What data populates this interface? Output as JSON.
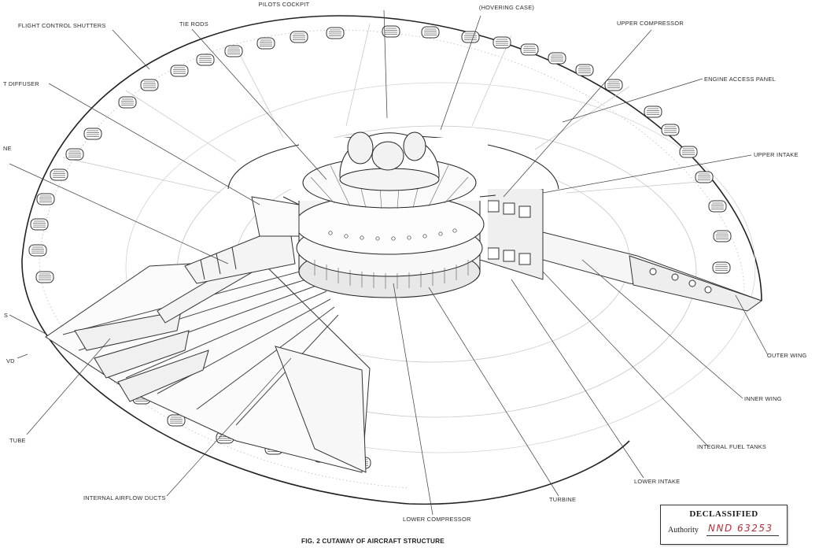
{
  "labels": {
    "pilots_cockpit": "PILOTS COCKPIT",
    "hovering_case": "(HOVERING CASE)",
    "upper_compressor": "UPPER COMPRESSOR",
    "flight_control_shutters": "FLIGHT CONTROL SHUTTERS",
    "tie_rods": "TIE RODS",
    "engine_access_panel": "ENGINE ACCESS PANEL",
    "diffuser_partial": "T DIFFUSER",
    "upper_intake": "UPPER INTAKE",
    "left_partial_ne": "NE",
    "left_partial_s": "S",
    "left_partial_vd": "VD",
    "outer_wing": "OUTER WING",
    "inner_wing": "INNER WING",
    "tube_partial": "TUBE",
    "integral_fuel_tanks": "INTEGRAL FUEL TANKS",
    "lower_intake": "LOWER INTAKE",
    "internal_airflow_ducts": "INTERNAL AIRFLOW DUCTS",
    "turbine": "TURBINE",
    "lower_compressor": "LOWER COMPRESSOR"
  },
  "caption": "FIG. 2 CUTAWAY OF AIRCRAFT STRUCTURE",
  "stamp": {
    "title": "DECLASSIFIED",
    "authority_label": "Authority",
    "authority_value": "NND 63253"
  }
}
